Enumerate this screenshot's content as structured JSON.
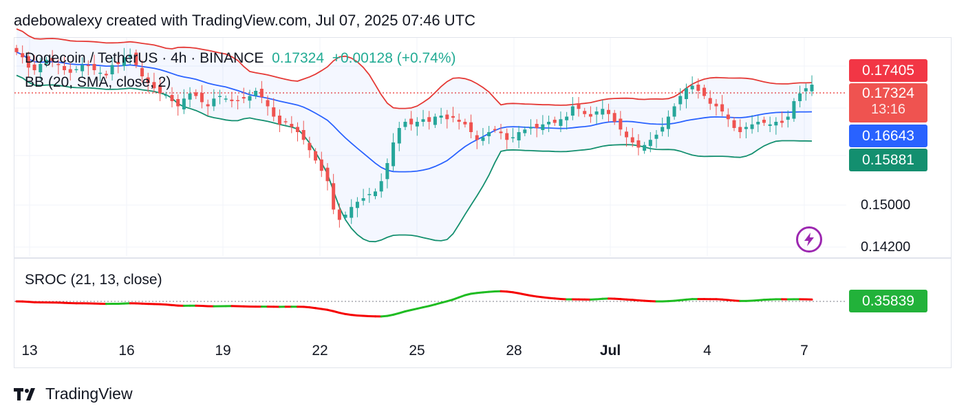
{
  "header": {
    "text": "adebowalexy created with TradingView.com, Jul 07, 2025 07:46 UTC"
  },
  "legend": {
    "symbol": "Dogecoin / TetherUS · 4h · BINANCE",
    "price": "0.17324",
    "change": "+0.00128 (+0.74%)",
    "bb_label": "BB (20, SMA, close, 2)",
    "sroc_label": "SROC (21, 13, close)"
  },
  "price_tags": {
    "upper": "0.17405",
    "last": "0.17324",
    "countdown": "13:16",
    "middle": "0.16643",
    "lower": "0.15881",
    "sroc": "0.35839"
  },
  "footer": {
    "brand": "TradingView"
  },
  "colors": {
    "up": "#26a69a",
    "down": "#ef5350",
    "bb_upper": "#e53935",
    "bb_basis": "#2962ff",
    "bb_lower": "#138f6f",
    "sroc_pos": "#1fbc22",
    "sroc_neg": "#f50000",
    "tag_green_sroc": "#22b23a"
  },
  "chart_data": {
    "type": "candlestick",
    "title": "Dogecoin / TetherUS · 4h · BINANCE",
    "x_ticks": [
      "13",
      "16",
      "19",
      "22",
      "25",
      "28",
      "Jul",
      "4",
      "7"
    ],
    "y_ticks": [
      "0.15000",
      "0.14200"
    ],
    "last_price": 0.17324,
    "bollinger": {
      "period": 20,
      "type": "SMA",
      "source": "close",
      "stddev": 2,
      "upper_last": 0.17405,
      "basis_last": 0.16643,
      "lower_last": 0.15881
    },
    "close_approx": [
      0.1795,
      0.1785,
      0.1765,
      0.176,
      0.1772,
      0.178,
      0.1778,
      0.177,
      0.176,
      0.1755,
      0.1762,
      0.177,
      0.1768,
      0.176,
      0.1755,
      0.175,
      0.177,
      0.1772,
      0.1785,
      0.179,
      0.177,
      0.1748,
      0.1735,
      0.1725,
      0.1715,
      0.1712,
      0.17,
      0.169,
      0.1705,
      0.1715,
      0.171,
      0.1698,
      0.169,
      0.1705,
      0.171,
      0.1705,
      0.17,
      0.1702,
      0.1705,
      0.171,
      0.172,
      0.1708,
      0.169,
      0.167,
      0.1655,
      0.166,
      0.165,
      0.164,
      0.1625,
      0.1605,
      0.1585,
      0.1565,
      0.1545,
      0.149,
      0.147,
      0.148,
      0.1495,
      0.1505,
      0.1512,
      0.152,
      0.1525,
      0.1545,
      0.158,
      0.162,
      0.1648,
      0.166,
      0.1655,
      0.166,
      0.1665,
      0.166,
      0.167,
      0.1672,
      0.1665,
      0.1668,
      0.166,
      0.1655,
      0.164,
      0.1625,
      0.163,
      0.164,
      0.1645,
      0.1638,
      0.1625,
      0.163,
      0.164,
      0.1645,
      0.165,
      0.1648,
      0.1655,
      0.166,
      0.1658,
      0.1665,
      0.167,
      0.169,
      0.1685,
      0.1675,
      0.167,
      0.168,
      0.1685,
      0.1675,
      0.166,
      0.1645,
      0.163,
      0.162,
      0.161,
      0.1615,
      0.1625,
      0.1635,
      0.165,
      0.167,
      0.169,
      0.171,
      0.1725,
      0.173,
      0.172,
      0.171,
      0.1695,
      0.169,
      0.168,
      0.1665,
      0.1648,
      0.164,
      0.165,
      0.1655,
      0.166,
      0.1658,
      0.1655,
      0.166,
      0.1658,
      0.167,
      0.17,
      0.1715,
      0.1725,
      0.1732
    ],
    "sroc": {
      "params": "21, 13, close",
      "last": 0.35839
    }
  }
}
